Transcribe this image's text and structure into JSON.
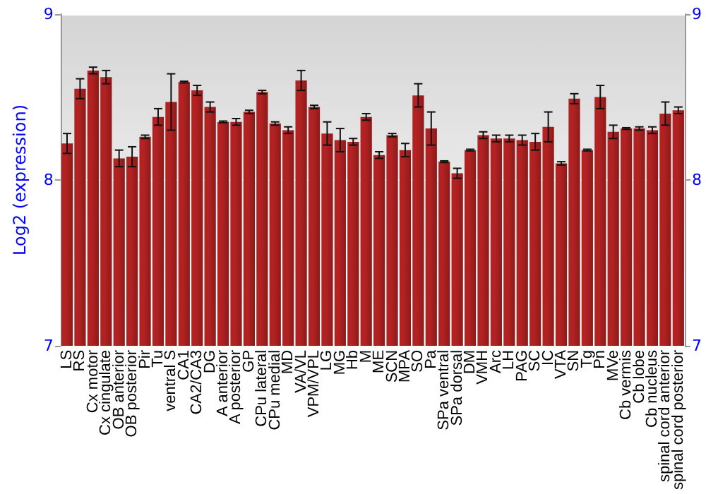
{
  "chart_data": {
    "type": "bar",
    "ylabel": "Log2 (expression)",
    "categories": [
      "LS",
      "RS",
      "Cx motor",
      "Cx cingulate",
      "OB anterior",
      "OB posterior",
      "Pir",
      "Tu",
      "ventral S",
      "CA1",
      "CA2/CA3",
      "DG",
      "A anterior",
      "A posterior",
      "GP",
      "CPu lateral",
      "CPu medial",
      "MD",
      "VA/VL",
      "VPM/VPL",
      "LG",
      "MG",
      "Hb",
      "M",
      "ME",
      "SCN",
      "MPA",
      "SO",
      "Pa",
      "SPa ventral",
      "SPa dorsal",
      "DM",
      "VMH",
      "Arc",
      "LH",
      "PAG",
      "SC",
      "IC",
      "VTA",
      "SN",
      "Tg",
      "Pn",
      "MVe",
      "Cb vermis",
      "Cb lobe",
      "Cb nucleus",
      "spinal cord anterior",
      "spinal cord posterior"
    ],
    "values": [
      8.22,
      8.55,
      8.66,
      8.62,
      8.13,
      8.14,
      8.26,
      8.38,
      8.47,
      8.59,
      8.54,
      8.44,
      8.35,
      8.35,
      8.41,
      8.53,
      8.34,
      8.3,
      8.6,
      8.44,
      8.28,
      8.24,
      8.23,
      8.38,
      8.15,
      8.27,
      8.18,
      8.51,
      8.31,
      8.11,
      8.04,
      8.18,
      8.27,
      8.25,
      8.25,
      8.24,
      8.23,
      8.32,
      8.1,
      8.49,
      8.18,
      8.5,
      8.29,
      8.31,
      8.31,
      8.3,
      8.4,
      8.42
    ],
    "errors": [
      0.06,
      0.06,
      0.02,
      0.04,
      0.05,
      0.06,
      0.01,
      0.05,
      0.17,
      0.005,
      0.03,
      0.03,
      0.005,
      0.02,
      0.01,
      0.01,
      0.01,
      0.02,
      0.06,
      0.01,
      0.07,
      0.07,
      0.02,
      0.02,
      0.02,
      0.01,
      0.04,
      0.07,
      0.1,
      0.005,
      0.03,
      0.005,
      0.02,
      0.02,
      0.02,
      0.03,
      0.05,
      0.09,
      0.01,
      0.03,
      0.005,
      0.07,
      0.04,
      0.005,
      0.01,
      0.02,
      0.07,
      0.02
    ],
    "color": "#b22222",
    "ylim": [
      7,
      9
    ],
    "yticks": [
      7,
      8,
      9
    ],
    "y2lim": [
      7,
      9
    ],
    "y2ticks": [
      7,
      8,
      9
    ],
    "grid": "y"
  }
}
